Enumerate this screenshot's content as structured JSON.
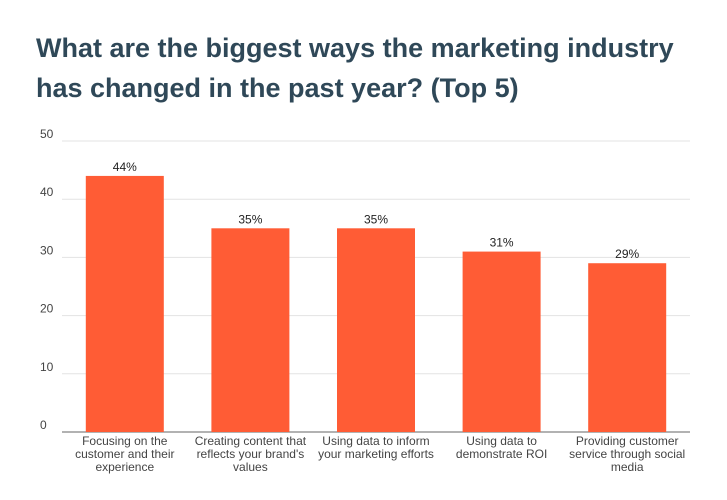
{
  "title": {
    "line1": "What are the biggest ways the marketing industry",
    "line2": "has changed in the past year? (Top 5)"
  },
  "chart_data": {
    "type": "bar",
    "title": "What are the biggest ways the marketing industry has changed in the past year? (Top 5)",
    "categories": [
      [
        "Focusing on the",
        "customer and their",
        "experience"
      ],
      [
        "Creating content that",
        "reflects your brand's",
        "values"
      ],
      [
        "Using data to inform",
        "your marketing efforts"
      ],
      [
        "Using data to",
        "demonstrate ROI"
      ],
      [
        "Providing customer",
        "service through social",
        "media"
      ]
    ],
    "values": [
      44,
      35,
      35,
      31,
      29
    ],
    "data_labels": [
      "44%",
      "35%",
      "35%",
      "31%",
      "29%"
    ],
    "yticks": [
      "0",
      "10",
      "20",
      "30",
      "40",
      "50"
    ],
    "ylim": [
      0,
      50
    ],
    "grid": true,
    "colors": {
      "bar": "#ff5c35",
      "grid": "#e3e3e3",
      "axis": "#666666",
      "title": "#2f4858"
    }
  }
}
